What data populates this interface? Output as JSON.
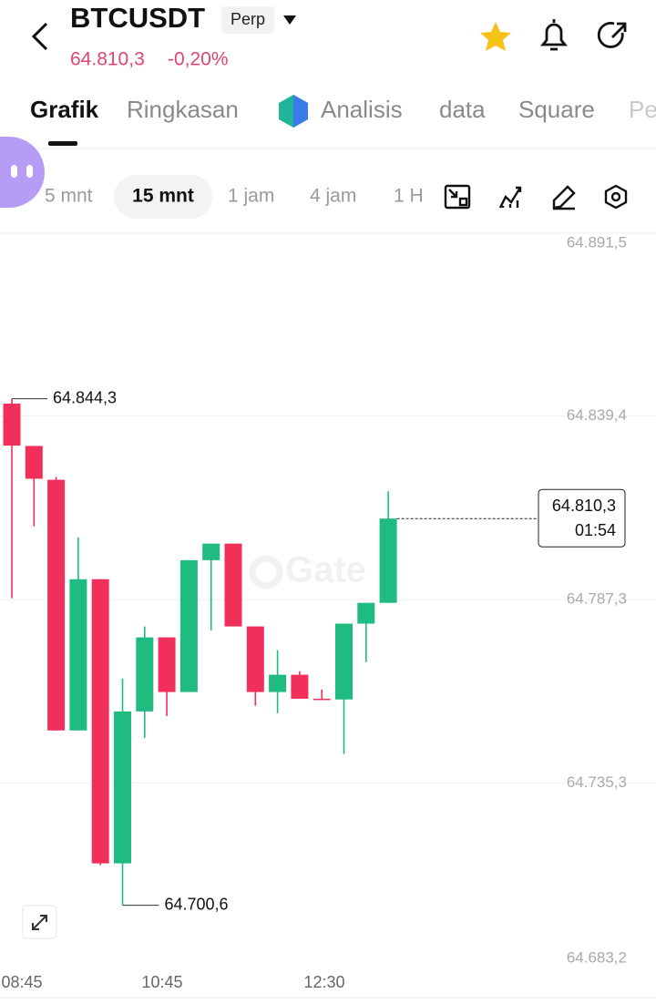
{
  "header": {
    "symbol": "BTCUSDT",
    "badge": "Perp",
    "price": "64.810,3",
    "change": "-0,20%"
  },
  "tabs": [
    "Grafik",
    "Ringkasan",
    "Analisis",
    "data",
    "Square",
    "Pe"
  ],
  "intervals": [
    "5 mnt",
    "15 mnt",
    "1 jam",
    "4 jam",
    "1 H"
  ],
  "chart_data": {
    "type": "candlestick",
    "watermark": "Gate",
    "up_color": "#1fbb80",
    "down_color": "#f02f5b",
    "open": [
      64842.9,
      64830.9,
      64821.3,
      64750.2,
      64793.1,
      64712.5,
      64755.6,
      64776.6,
      64761.1,
      64798.5,
      64803.2,
      64779.7,
      64761.1,
      64766.0,
      64759.2,
      64759.0,
      64780.5,
      64786.4
    ],
    "high": [
      64844.3,
      64830.9,
      64822.1,
      64805.0,
      64793.1,
      64764.9,
      64779.7,
      64776.6,
      64798.5,
      64803.2,
      64803.2,
      64779.7,
      64773.0,
      64767.0,
      64761.8,
      64780.5,
      64786.4,
      64818.0
    ],
    "low": [
      64787.7,
      64808.1,
      64750.2,
      64750.2,
      64712.0,
      64700.6,
      64748.1,
      64754.3,
      64761.1,
      64778.6,
      64779.7,
      64757.2,
      64755.1,
      64759.2,
      64759.0,
      64743.5,
      64769.6,
      64786.4
    ],
    "close": [
      64831.0,
      64821.6,
      64750.2,
      64793.1,
      64712.5,
      64755.6,
      64776.6,
      64761.1,
      64798.5,
      64803.2,
      64779.7,
      64761.1,
      64766.0,
      64759.2,
      64759.0,
      64780.5,
      64786.4,
      64810.3
    ],
    "x_labels": [
      "08:45",
      "10:45",
      "12:30"
    ],
    "ylim": [
      64683.2,
      64891.5
    ],
    "yticks": [
      {
        "value": 64891.5,
        "label": "64.891,5"
      },
      {
        "value": 64839.4,
        "label": "64.839,4"
      },
      {
        "value": 64787.3,
        "label": "64.787,3"
      },
      {
        "value": 64735.3,
        "label": "64.735,3"
      },
      {
        "value": 64683.2,
        "label": "64.683,2"
      }
    ],
    "max_marker": {
      "value": 64844.3,
      "label": "64.844,3"
    },
    "min_marker": {
      "value": 64700.6,
      "label": "64.700,6"
    },
    "last_price": {
      "value": 64810.3,
      "label": "64.810,3"
    },
    "countdown": "01:54"
  }
}
